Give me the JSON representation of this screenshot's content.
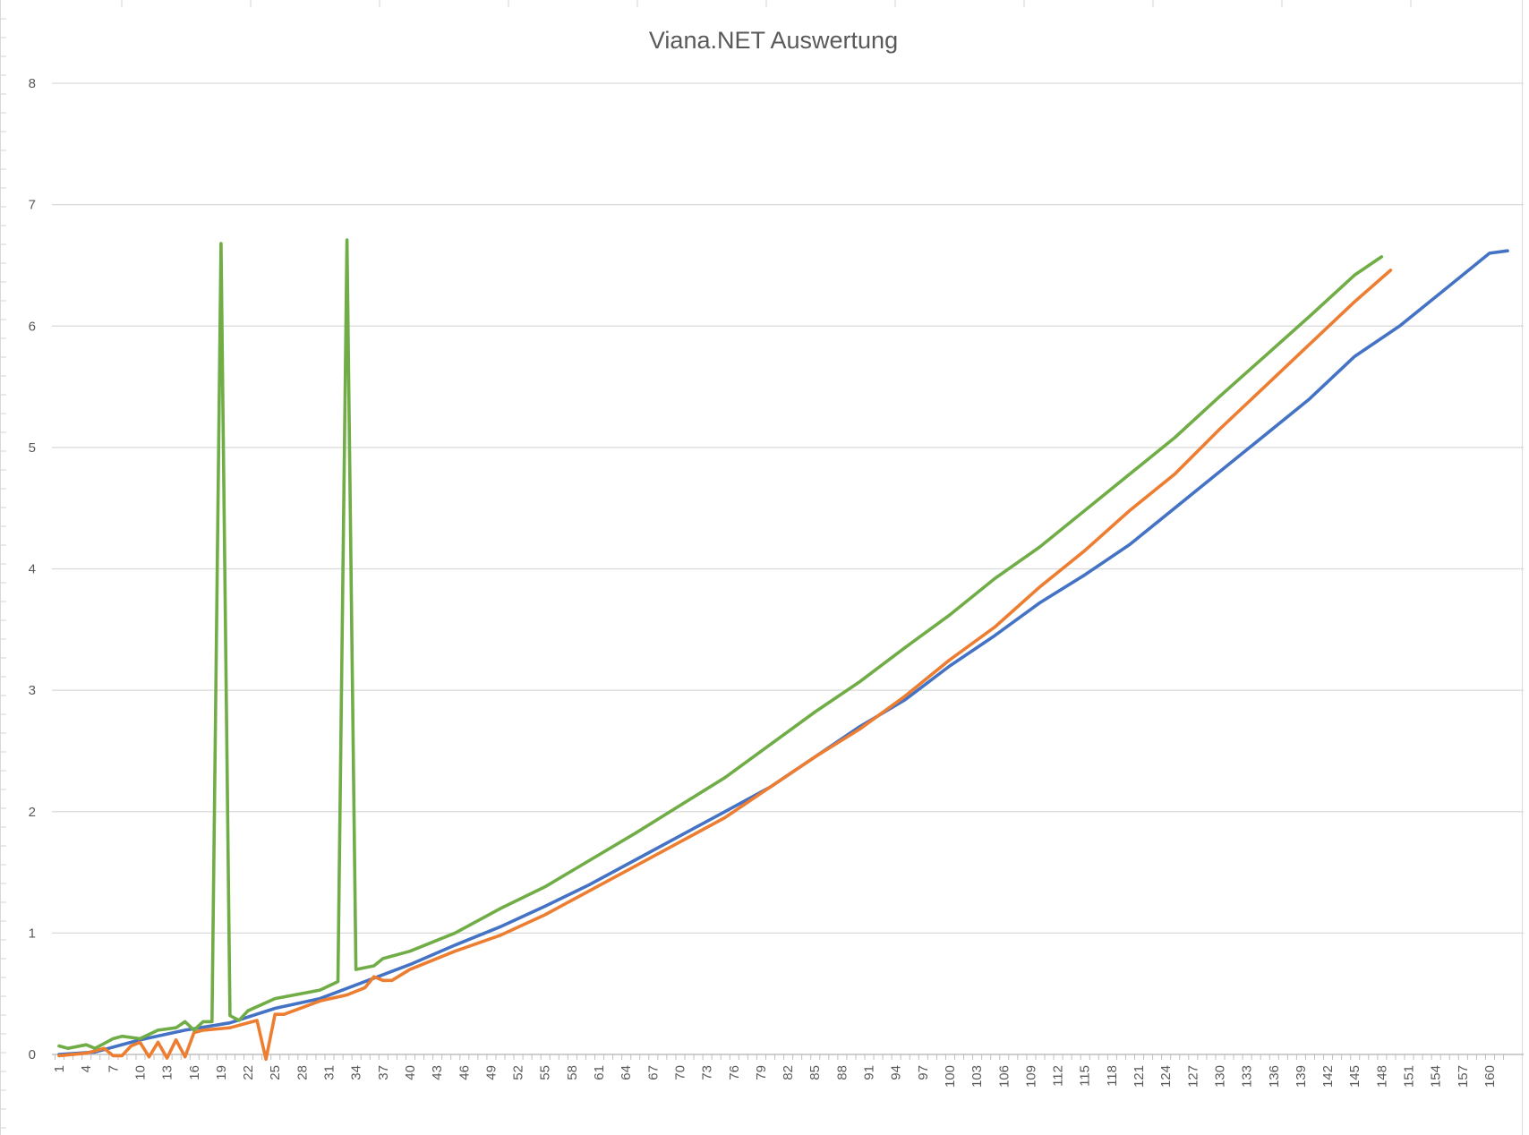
{
  "chart_data": {
    "type": "line",
    "title": "Viana.NET Auswertung",
    "xlabel": "",
    "ylabel": "",
    "x_range": [
      1,
      162
    ],
    "ylim": [
      0,
      8
    ],
    "y_ticks": [
      0,
      1,
      2,
      3,
      4,
      5,
      6,
      7,
      8
    ],
    "x_tick_labels": [
      1,
      4,
      7,
      10,
      13,
      16,
      19,
      22,
      25,
      28,
      31,
      34,
      37,
      40,
      43,
      46,
      49,
      52,
      55,
      58,
      61,
      64,
      67,
      70,
      73,
      76,
      79,
      82,
      85,
      88,
      91,
      94,
      97,
      100,
      103,
      106,
      109,
      112,
      115,
      118,
      121,
      124,
      127,
      130,
      133,
      136,
      139,
      142,
      145,
      148,
      151,
      154,
      157,
      160
    ],
    "grid": "horizontal",
    "legend": "none",
    "series": [
      {
        "color": "#4472C4",
        "points": [
          [
            1,
            0.0
          ],
          [
            5,
            0.02
          ],
          [
            10,
            0.12
          ],
          [
            15,
            0.2
          ],
          [
            20,
            0.26
          ],
          [
            25,
            0.38
          ],
          [
            30,
            0.46
          ],
          [
            35,
            0.6
          ],
          [
            40,
            0.74
          ],
          [
            45,
            0.9
          ],
          [
            50,
            1.05
          ],
          [
            55,
            1.22
          ],
          [
            60,
            1.4
          ],
          [
            65,
            1.6
          ],
          [
            70,
            1.8
          ],
          [
            75,
            2.0
          ],
          [
            80,
            2.2
          ],
          [
            85,
            2.45
          ],
          [
            90,
            2.7
          ],
          [
            95,
            2.92
          ],
          [
            100,
            3.2
          ],
          [
            105,
            3.45
          ],
          [
            110,
            3.72
          ],
          [
            115,
            3.95
          ],
          [
            120,
            4.2
          ],
          [
            125,
            4.5
          ],
          [
            130,
            4.8
          ],
          [
            135,
            5.1
          ],
          [
            140,
            5.4
          ],
          [
            145,
            5.75
          ],
          [
            150,
            6.0
          ],
          [
            155,
            6.3
          ],
          [
            160,
            6.6
          ],
          [
            162,
            6.62
          ]
        ]
      },
      {
        "color": "#ED7D31",
        "points": [
          [
            1,
            -0.01
          ],
          [
            4,
            0.01
          ],
          [
            6,
            0.05
          ],
          [
            7,
            -0.01
          ],
          [
            8,
            -0.01
          ],
          [
            9,
            0.07
          ],
          [
            10,
            0.1
          ],
          [
            11,
            -0.02
          ],
          [
            12,
            0.1
          ],
          [
            13,
            -0.03
          ],
          [
            14,
            0.12
          ],
          [
            15,
            -0.02
          ],
          [
            16,
            0.18
          ],
          [
            17,
            0.2
          ],
          [
            20,
            0.22
          ],
          [
            23,
            0.28
          ],
          [
            24,
            -0.04
          ],
          [
            25,
            0.33
          ],
          [
            26,
            0.33
          ],
          [
            30,
            0.44
          ],
          [
            33,
            0.49
          ],
          [
            35,
            0.55
          ],
          [
            36,
            0.64
          ],
          [
            37,
            0.61
          ],
          [
            38,
            0.61
          ],
          [
            40,
            0.7
          ],
          [
            45,
            0.85
          ],
          [
            50,
            0.98
          ],
          [
            55,
            1.15
          ],
          [
            60,
            1.35
          ],
          [
            65,
            1.55
          ],
          [
            70,
            1.75
          ],
          [
            75,
            1.95
          ],
          [
            80,
            2.2
          ],
          [
            85,
            2.45
          ],
          [
            90,
            2.68
          ],
          [
            95,
            2.95
          ],
          [
            100,
            3.25
          ],
          [
            105,
            3.52
          ],
          [
            110,
            3.85
          ],
          [
            115,
            4.15
          ],
          [
            120,
            4.48
          ],
          [
            125,
            4.78
          ],
          [
            130,
            5.15
          ],
          [
            135,
            5.5
          ],
          [
            140,
            5.85
          ],
          [
            145,
            6.2
          ],
          [
            149,
            6.46
          ]
        ]
      },
      {
        "color": "#70AD47",
        "points": [
          [
            1,
            0.07
          ],
          [
            2,
            0.05
          ],
          [
            4,
            0.08
          ],
          [
            5,
            0.05
          ],
          [
            7,
            0.13
          ],
          [
            8,
            0.15
          ],
          [
            10,
            0.13
          ],
          [
            12,
            0.2
          ],
          [
            14,
            0.22
          ],
          [
            15,
            0.27
          ],
          [
            16,
            0.2
          ],
          [
            17,
            0.27
          ],
          [
            18,
            0.27
          ],
          [
            19,
            6.68
          ],
          [
            20,
            0.32
          ],
          [
            21,
            0.28
          ],
          [
            22,
            0.36
          ],
          [
            25,
            0.46
          ],
          [
            30,
            0.53
          ],
          [
            32,
            0.6
          ],
          [
            33,
            6.71
          ],
          [
            34,
            0.7
          ],
          [
            36,
            0.73
          ],
          [
            37,
            0.79
          ],
          [
            40,
            0.85
          ],
          [
            45,
            1.0
          ],
          [
            50,
            1.2
          ],
          [
            55,
            1.38
          ],
          [
            60,
            1.6
          ],
          [
            65,
            1.82
          ],
          [
            70,
            2.05
          ],
          [
            75,
            2.28
          ],
          [
            80,
            2.55
          ],
          [
            85,
            2.82
          ],
          [
            90,
            3.07
          ],
          [
            95,
            3.35
          ],
          [
            100,
            3.62
          ],
          [
            105,
            3.92
          ],
          [
            110,
            4.18
          ],
          [
            115,
            4.48
          ],
          [
            120,
            4.78
          ],
          [
            125,
            5.08
          ],
          [
            130,
            5.42
          ],
          [
            135,
            5.75
          ],
          [
            140,
            6.08
          ],
          [
            145,
            6.42
          ],
          [
            148,
            6.57
          ]
        ]
      }
    ]
  }
}
